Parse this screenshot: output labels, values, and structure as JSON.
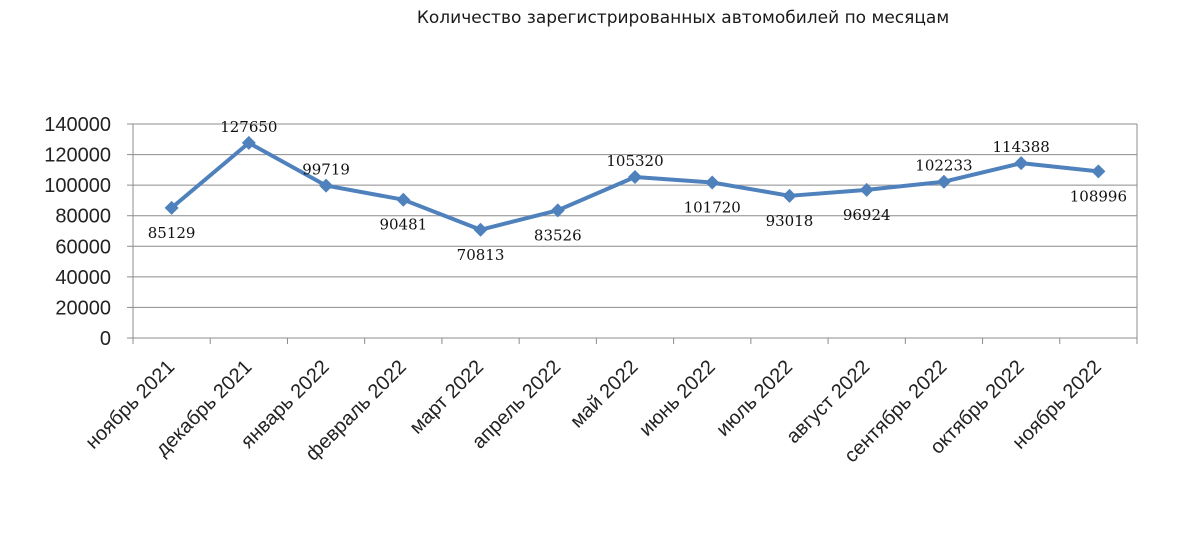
{
  "chart_data": {
    "type": "line",
    "title": "Количество зарегистрированных автомобилей по месяцам",
    "categories": [
      "ноябрь 2021",
      "декабрь 2021",
      "январь 2022",
      "февраль 2022",
      "март 2022",
      "апрель 2022",
      "май 2022",
      "июнь 2022",
      "июль 2022",
      "август 2022",
      "сентябрь 2022",
      "октябрь 2022",
      "ноябрь 2022"
    ],
    "values": [
      85129,
      127650,
      99719,
      90481,
      70813,
      83526,
      105320,
      101720,
      93018,
      96924,
      102233,
      114388,
      108996
    ],
    "data_labels": [
      "85129",
      "127650",
      "99719",
      "90481",
      "70813",
      "83526",
      "105320",
      "101720",
      "93018",
      "96924",
      "102233",
      "114388",
      "108996"
    ],
    "yticks": [
      "0",
      "20000",
      "40000",
      "60000",
      "80000",
      "100000",
      "120000",
      "140000"
    ],
    "ylim": [
      0,
      140000
    ],
    "xlabel": "",
    "ylabel": "",
    "grid": true,
    "legend": "none",
    "line_color": "#4f81bd",
    "marker": "diamond"
  }
}
